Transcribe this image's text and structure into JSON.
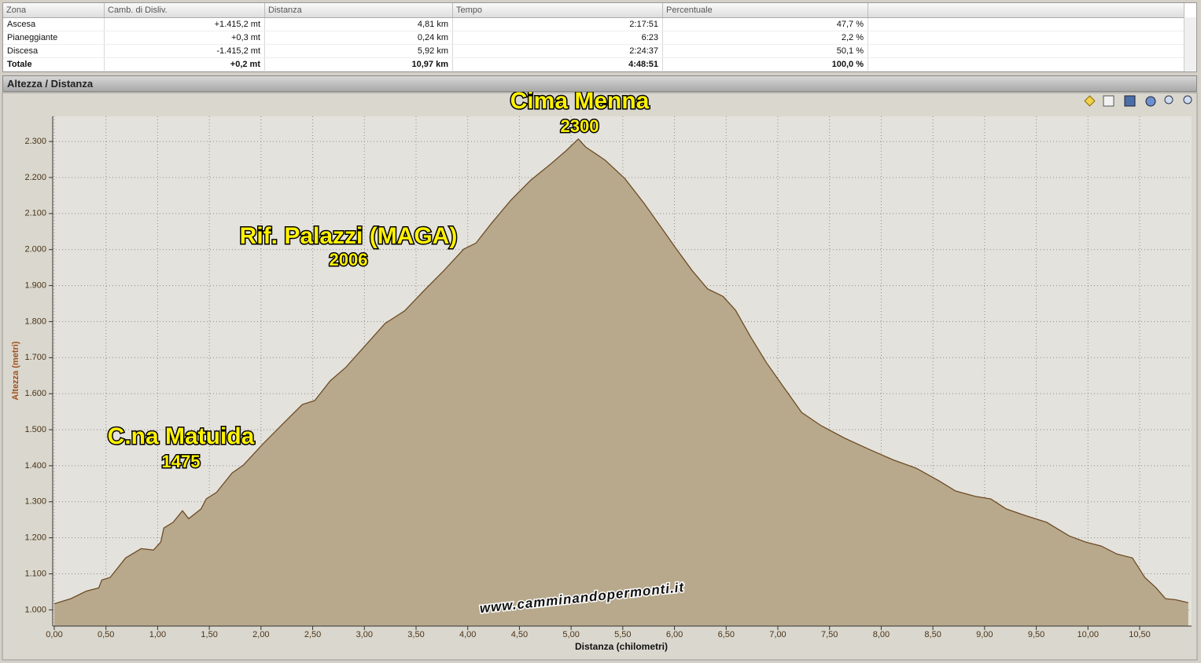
{
  "panel_title": "Altezza / Distanza",
  "table": {
    "columns": [
      "Zona",
      "Camb. di Disliv.",
      "Distanza",
      "Tempo",
      "Percentuale"
    ],
    "rows": [
      [
        "Ascesa",
        "+1.415,2 mt",
        "4,81 km",
        "2:17:51",
        "47,7 %"
      ],
      [
        "Pianeggiante",
        "+0,3 mt",
        "0,24 km",
        "6:23",
        "2,2 %"
      ],
      [
        "Discesa",
        "-1.415,2 mt",
        "5,92 km",
        "2:24:37",
        "50,1 %"
      ],
      [
        "Totale",
        "+0,2 mt",
        "10,97 km",
        "4:48:51",
        "100,0 %"
      ]
    ]
  },
  "chart_data": {
    "type": "area",
    "x_label": "Distanza (chilometri)",
    "y_label": "Altezza (metri)",
    "x": [
      0,
      0.16,
      0.31,
      0.43,
      0.46,
      0.54,
      0.69,
      0.84,
      0.96,
      1.03,
      1.06,
      1.15,
      1.24,
      1.3,
      1.42,
      1.47,
      1.57,
      1.72,
      1.83,
      2.02,
      2.21,
      2.4,
      2.52,
      2.67,
      2.82,
      3.01,
      3.2,
      3.39,
      3.58,
      3.77,
      3.96,
      4.08,
      4.23,
      4.42,
      4.61,
      4.8,
      4.95,
      5.07,
      5.14,
      5.33,
      5.52,
      5.71,
      5.87,
      6.02,
      6.17,
      6.32,
      6.47,
      6.59,
      6.74,
      6.89,
      7.04,
      7.23,
      7.42,
      7.65,
      7.88,
      8.11,
      8.34,
      8.56,
      8.72,
      8.91,
      9.06,
      9.21,
      9.37,
      9.6,
      9.82,
      9.98,
      10.13,
      10.28,
      10.43,
      10.55,
      10.66,
      10.75,
      10.85,
      10.97
    ],
    "values": [
      1017,
      1031,
      1052,
      1061,
      1083,
      1090,
      1144,
      1170,
      1166,
      1188,
      1227,
      1243,
      1275,
      1253,
      1280,
      1308,
      1326,
      1380,
      1402,
      1461,
      1516,
      1570,
      1581,
      1636,
      1673,
      1734,
      1795,
      1830,
      1887,
      1942,
      2001,
      2018,
      2073,
      2138,
      2193,
      2237,
      2274,
      2307,
      2285,
      2248,
      2197,
      2127,
      2062,
      2001,
      1942,
      1891,
      1870,
      1832,
      1756,
      1686,
      1625,
      1548,
      1511,
      1476,
      1446,
      1417,
      1393,
      1358,
      1330,
      1315,
      1308,
      1280,
      1264,
      1243,
      1205,
      1188,
      1177,
      1155,
      1144,
      1090,
      1061,
      1031,
      1028,
      1020
    ],
    "color": "#b8a98d",
    "line_color": "#6e4c26",
    "xlim": [
      0,
      11
    ],
    "ylim": [
      955,
      2370
    ],
    "xticks": [
      {
        "value": 0,
        "label": "0,00"
      },
      {
        "value": 0.5,
        "label": "0,50"
      },
      {
        "value": 1,
        "label": "1,00"
      },
      {
        "value": 1.5,
        "label": "1,50"
      },
      {
        "value": 2,
        "label": "2,00"
      },
      {
        "value": 2.5,
        "label": "2,50"
      },
      {
        "value": 3,
        "label": "3,00"
      },
      {
        "value": 3.5,
        "label": "3,50"
      },
      {
        "value": 4,
        "label": "4,00"
      },
      {
        "value": 4.5,
        "label": "4,50"
      },
      {
        "value": 5,
        "label": "5,00"
      },
      {
        "value": 5.5,
        "label": "5,50"
      },
      {
        "value": 6,
        "label": "6,00"
      },
      {
        "value": 6.5,
        "label": "6,50"
      },
      {
        "value": 7,
        "label": "7,00"
      },
      {
        "value": 7.5,
        "label": "7,50"
      },
      {
        "value": 8,
        "label": "8,00"
      },
      {
        "value": 8.5,
        "label": "8,50"
      },
      {
        "value": 9,
        "label": "9,00"
      },
      {
        "value": 9.5,
        "label": "9,50"
      },
      {
        "value": 10,
        "label": "10,00"
      },
      {
        "value": 10.5,
        "label": "10,50"
      }
    ],
    "yticks": [
      {
        "value": 1000,
        "label": "1.000"
      },
      {
        "value": 1100,
        "label": "1.100"
      },
      {
        "value": 1200,
        "label": "1.200"
      },
      {
        "value": 1300,
        "label": "1.300"
      },
      {
        "value": 1400,
        "label": "1.400"
      },
      {
        "value": 1500,
        "label": "1.500"
      },
      {
        "value": 1600,
        "label": "1.600"
      },
      {
        "value": 1700,
        "label": "1.700"
      },
      {
        "value": 1800,
        "label": "1.800"
      },
      {
        "value": 1900,
        "label": "1.900"
      },
      {
        "value": 2000,
        "label": "2.000"
      },
      {
        "value": 2100,
        "label": "2.100"
      },
      {
        "value": 2200,
        "label": "2.200"
      },
      {
        "value": 2300,
        "label": "2.300"
      }
    ],
    "grid": true,
    "annotations": [
      {
        "text": "Cima Menna",
        "elevation": 2300
      },
      {
        "text": "Rif. Palazzi (MAGA)",
        "elevation": 2006
      },
      {
        "text": "C.na Matuida",
        "elevation": 1475
      }
    ],
    "watermark": "www.camminandopermonti.it"
  }
}
